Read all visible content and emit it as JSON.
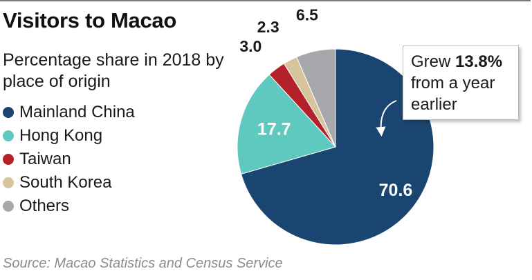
{
  "chart_data": {
    "type": "pie",
    "title": "Visitors to Macao",
    "subtitle": "Percentage share in 2018 by place of origin",
    "categories": [
      "Mainland China",
      "Hong Kong",
      "Taiwan",
      "South Korea",
      "Others"
    ],
    "values": [
      70.6,
      17.7,
      3.0,
      2.3,
      6.5
    ],
    "value_labels": [
      "70.6",
      "17.7",
      "3.0",
      "2.3",
      "6.5"
    ],
    "colors": [
      "#1b4571",
      "#5fc9c0",
      "#b3222a",
      "#d6c49a",
      "#a7a8ac"
    ],
    "start": "12 o'clock",
    "direction": "clockwise",
    "legend_position": "left",
    "annotation": {
      "target": "Mainland China",
      "text_before": "Grew",
      "text_bold": "13.8%",
      "text_after": "from a year earlier"
    },
    "source": "Source: Macao Statistics and Census Service"
  }
}
